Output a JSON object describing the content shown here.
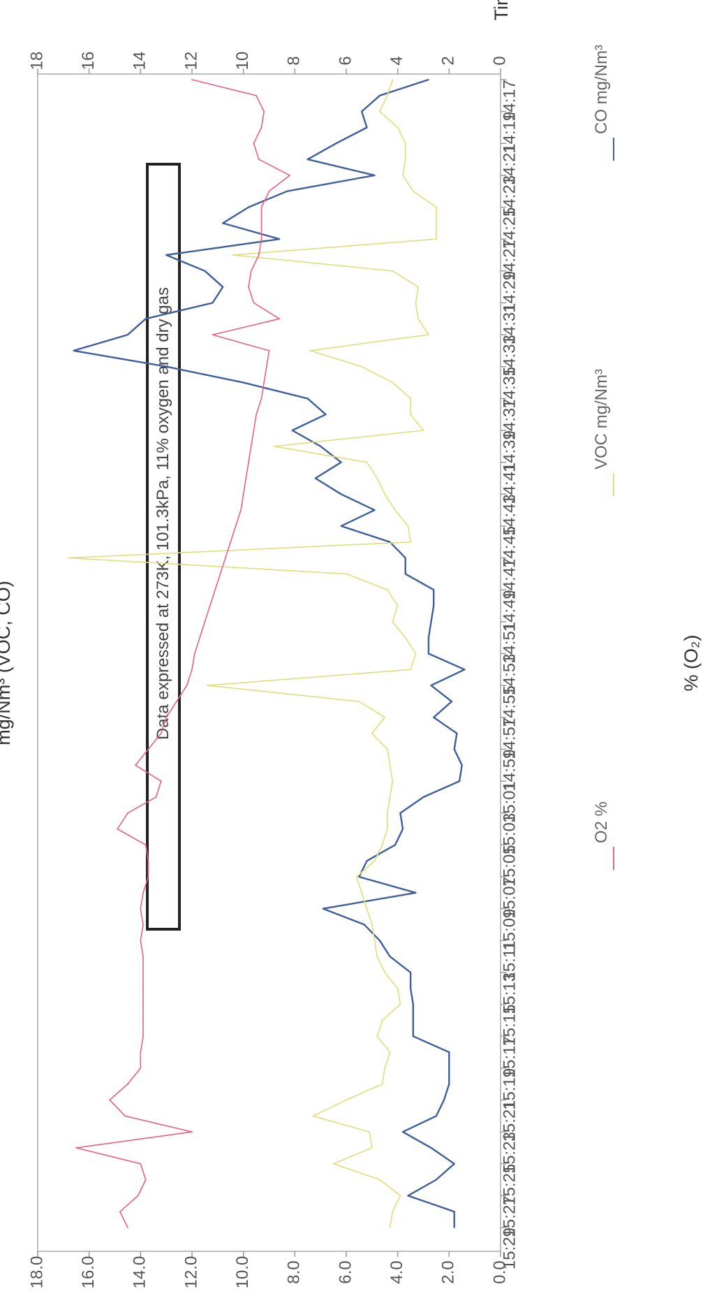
{
  "chart_data": {
    "type": "line",
    "orientation_note_shown": false,
    "title": "",
    "note": "Data expressed at 273K, 101.3kPa, 11% oxygen and dry gas",
    "xlabel": "Time",
    "ylabel_left": "mg/Nm³ (VOC, CO)",
    "ylabel_right": "% (O₂)",
    "left_ylim": [
      0,
      18
    ],
    "right_ylim": [
      0,
      18
    ],
    "left_ticks": [
      "0",
      "2",
      "4",
      "6",
      "8",
      "10",
      "12",
      "14",
      "16",
      "18"
    ],
    "right_ticks": [
      "0.0",
      "2.0",
      "4.0",
      "6.0",
      "8.0",
      "10.0",
      "12.0",
      "14.0",
      "16.0",
      "18.0"
    ],
    "x": [
      "14:17",
      "14:18",
      "14:19",
      "14:20",
      "14:21",
      "14:22",
      "14:23",
      "14:24",
      "14:25",
      "14:26",
      "14:27",
      "14:28",
      "14:29",
      "14:30",
      "14:31",
      "14:32",
      "14:33",
      "14:34",
      "14:35",
      "14:36",
      "14:37",
      "14:38",
      "14:39",
      "14:40",
      "14:41",
      "14:42",
      "14:43",
      "14:44",
      "14:45",
      "14:46",
      "14:47",
      "14:48",
      "14:49",
      "14:50",
      "14:51",
      "14:52",
      "14:53",
      "14:54",
      "14:55",
      "14:56",
      "14:57",
      "14:58",
      "14:59",
      "15:00",
      "15:01",
      "15:02",
      "15:03",
      "15:04",
      "15:05",
      "15:06",
      "15:07",
      "15:08",
      "15:09",
      "15:10",
      "15:11",
      "15:12",
      "15:13",
      "15:14",
      "15:15",
      "15:16",
      "15:17",
      "15:18",
      "15:19",
      "15:20",
      "15:21",
      "15:22",
      "15:23",
      "15:24",
      "15:25",
      "15:26",
      "15:27",
      "15:28",
      "15:29"
    ],
    "x_tick_labels": [
      "14:17",
      "14:19",
      "14:21",
      "14:23",
      "14:25",
      "14:27",
      "14:29",
      "14:31",
      "14:33",
      "14:35",
      "14:37",
      "14:39",
      "14:41",
      "14:43",
      "14:45",
      "14:47",
      "14:49",
      "14:51",
      "14:53",
      "14:55",
      "14:57",
      "14:59",
      "15:01",
      "15:03",
      "15:05",
      "15:07",
      "15:09",
      "15:11",
      "15:13",
      "15:15",
      "15:17",
      "15:19",
      "15:21",
      "15:23",
      "15:25",
      "15:27",
      "15:29"
    ],
    "legend_position": "bottom",
    "grid": false,
    "series": [
      {
        "name": "CO mg/Nm³",
        "axis": "left",
        "color": "#3f5e9c",
        "values": [
          2.8,
          4.7,
          5.4,
          5.2,
          6.4,
          7.5,
          4.9,
          8.3,
          9.8,
          10.8,
          8.6,
          13.0,
          11.5,
          10.8,
          11.2,
          13.8,
          14.5,
          16.6,
          13.0,
          10.0,
          7.5,
          6.8,
          8.1,
          7.0,
          6.2,
          7.2,
          6.2,
          4.9,
          6.2,
          4.3,
          3.7,
          3.7,
          2.6,
          2.6,
          2.7,
          2.8,
          2.8,
          1.4,
          2.7,
          1.9,
          2.6,
          1.7,
          1.8,
          1.5,
          1.6,
          3.0,
          3.9,
          3.8,
          4.1,
          5.2,
          5.5,
          3.3,
          6.9,
          5.3,
          4.7,
          4.3,
          3.5,
          3.5,
          3.4,
          3.4,
          3.4,
          2.0,
          2.0,
          2.0,
          2.2,
          2.5,
          3.8,
          2.7,
          1.8,
          2.5,
          3.6,
          1.8,
          1.8
        ]
      },
      {
        "name": "VOC mg/Nm³",
        "axis": "left",
        "color": "#e2dc7a",
        "values": [
          4.2,
          4.4,
          4.7,
          4.0,
          3.7,
          3.7,
          3.8,
          3.4,
          2.5,
          2.5,
          2.5,
          10.4,
          4.2,
          3.2,
          3.3,
          3.2,
          2.8,
          7.4,
          5.4,
          4.2,
          3.5,
          3.5,
          3.0,
          8.8,
          5.2,
          4.8,
          4.5,
          4.1,
          3.6,
          3.5,
          16.8,
          6.0,
          4.4,
          4.0,
          4.2,
          3.7,
          3.3,
          3.5,
          11.4,
          5.5,
          4.5,
          5.0,
          4.4,
          4.3,
          4.2,
          4.3,
          4.4,
          4.4,
          4.6,
          4.9,
          5.6,
          5.4,
          5.2,
          5.0,
          4.9,
          4.8,
          4.5,
          4.0,
          3.9,
          4.6,
          4.8,
          4.3,
          4.5,
          4.6,
          6.0,
          7.3,
          5.1,
          5.0,
          6.5,
          4.7,
          3.9,
          4.2,
          4.3
        ]
      },
      {
        "name": "O2 %",
        "axis": "right",
        "color": "#e8617d",
        "values": [
          12.0,
          9.5,
          9.2,
          9.3,
          9.6,
          9.4,
          8.2,
          9.0,
          9.3,
          9.3,
          9.3,
          9.4,
          9.7,
          9.8,
          9.6,
          8.6,
          11.2,
          9.0,
          9.1,
          9.2,
          9.3,
          9.5,
          9.6,
          9.7,
          9.8,
          9.9,
          10.0,
          10.1,
          10.3,
          10.5,
          10.7,
          10.9,
          11.1,
          11.3,
          11.5,
          11.7,
          11.9,
          12.0,
          12.2,
          12.6,
          13.0,
          13.2,
          13.7,
          14.2,
          13.2,
          13.4,
          14.5,
          14.9,
          13.8,
          13.7,
          13.7,
          13.9,
          14.0,
          13.9,
          14.0,
          13.9,
          13.9,
          13.9,
          13.9,
          13.9,
          13.9,
          14.0,
          14.0,
          14.5,
          15.2,
          14.6,
          12.0,
          16.5,
          14.0,
          13.8,
          14.1,
          14.8,
          14.5
        ]
      }
    ]
  },
  "legend": {
    "co": "CO mg/Nm³",
    "voc": "VOC mg/Nm³",
    "o2": "O2 %"
  }
}
